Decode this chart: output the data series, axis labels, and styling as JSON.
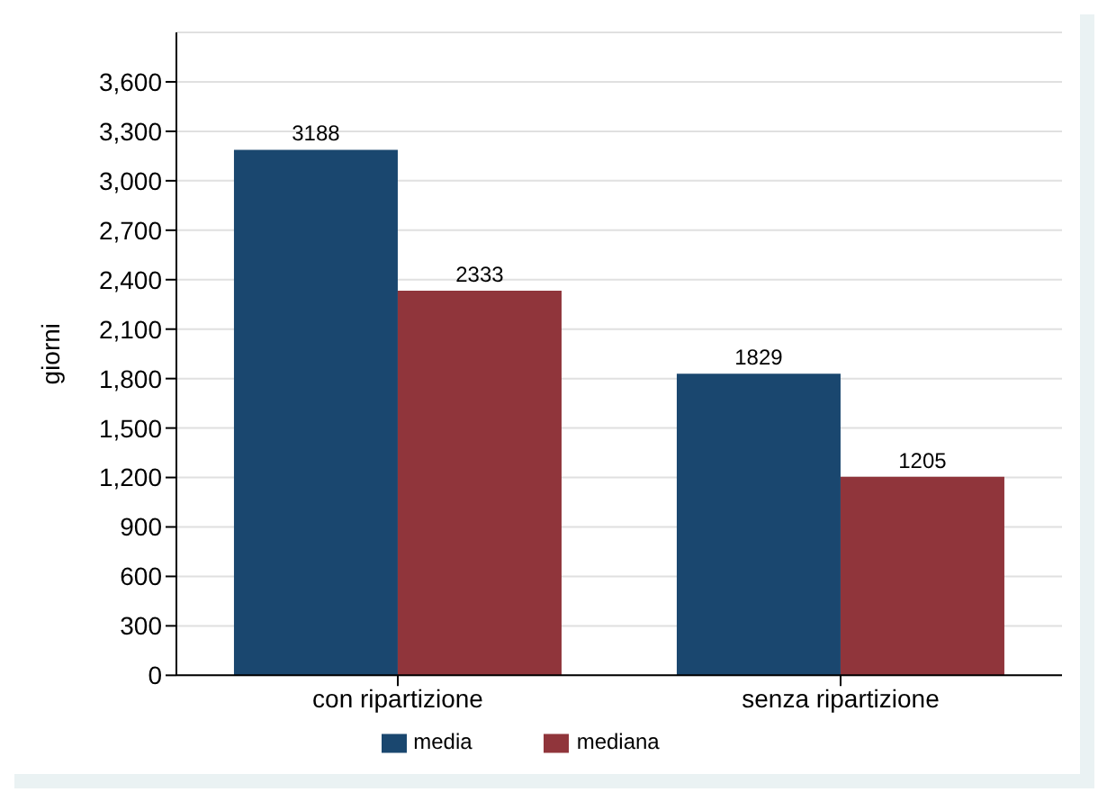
{
  "chart_data": {
    "type": "bar",
    "ylabel": "giorni",
    "categories": [
      "con ripartizione",
      "senza ripartizione"
    ],
    "series": [
      {
        "name": "media",
        "color": "#1a476f",
        "values": [
          3188,
          1829
        ]
      },
      {
        "name": "mediana",
        "color": "#90353b",
        "values": [
          2333,
          1205
        ]
      }
    ],
    "ylim": [
      0,
      3900
    ],
    "yticks": [
      0,
      {
        "value": 300,
        "label": "300"
      },
      {
        "value": 600,
        "label": "600"
      },
      {
        "value": 900,
        "label": "900"
      },
      {
        "value": 1200,
        "label": "1,200"
      },
      {
        "value": 1500,
        "label": "1,500"
      },
      {
        "value": 1800,
        "label": "1,800"
      },
      {
        "value": 2100,
        "label": "2,100"
      },
      {
        "value": 2400,
        "label": "2,400"
      },
      {
        "value": 2700,
        "label": "2,700"
      },
      {
        "value": 3000,
        "label": "3,000"
      },
      {
        "value": 3300,
        "label": "3,300"
      },
      {
        "value": 3600,
        "label": "3,600"
      }
    ],
    "grid": "y",
    "legend": "bottom",
    "data_labels": true
  }
}
